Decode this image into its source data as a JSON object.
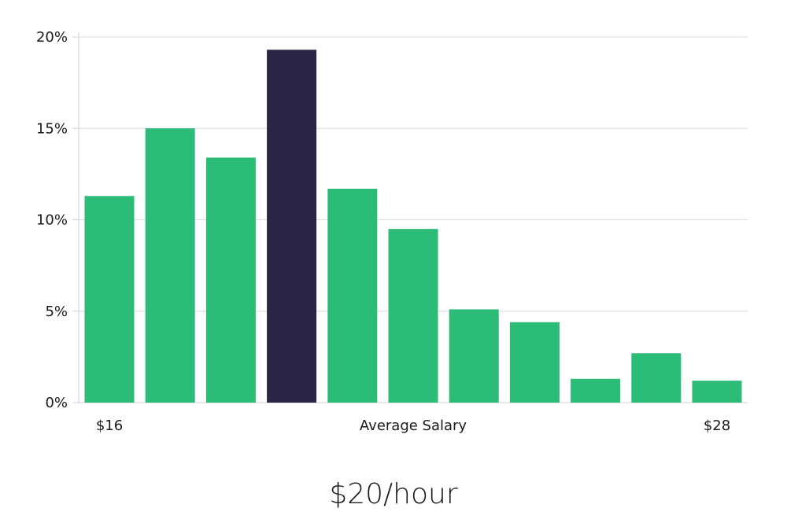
{
  "chart_data": {
    "type": "bar",
    "categories": [
      "$16",
      "",
      "",
      "",
      "",
      "",
      "",
      "",
      "",
      "",
      "$28"
    ],
    "values": [
      11.3,
      15.0,
      13.4,
      19.3,
      11.7,
      9.5,
      5.1,
      4.4,
      1.3,
      2.7,
      1.2
    ],
    "highlight_index": 3,
    "y_ticks": [
      "0%",
      "5%",
      "10%",
      "15%",
      "20%"
    ],
    "y_tick_values": [
      0,
      5,
      10,
      15,
      20
    ],
    "ylim": [
      0,
      20
    ],
    "x_labels": {
      "left": "$16",
      "center": "Average Salary",
      "right": "$28"
    },
    "colors": {
      "bar": "#2bbd77",
      "highlight": "#2a2546"
    },
    "grid": true
  },
  "summary": {
    "value": "$20/hour"
  }
}
